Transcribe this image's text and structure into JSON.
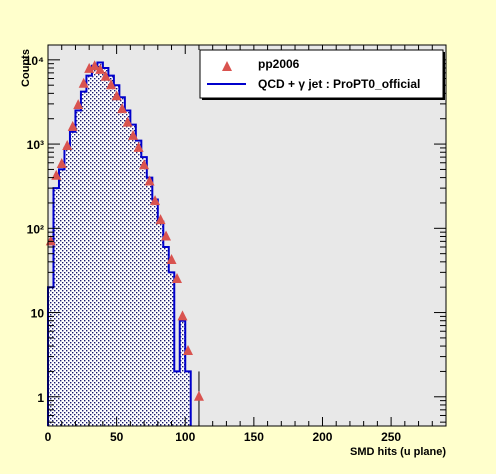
{
  "colors": {
    "background": "#ffffcc",
    "frame": "#e8e8e8",
    "mc_line": "#0000cc",
    "data_marker": "#d9534f"
  },
  "chart_data": {
    "type": "histogram",
    "xlabel": "SMD hits (u plane)",
    "ylabel": "Counts",
    "xlim": [
      0,
      290
    ],
    "ylim": [
      0.45,
      15000
    ],
    "y_scale": "log",
    "grid": false,
    "legend_position": "top-right",
    "x_ticks": [
      0,
      50,
      100,
      150,
      200,
      250
    ],
    "y_ticks": [
      {
        "value": 1,
        "label": "1"
      },
      {
        "value": 10,
        "label": "10"
      },
      {
        "value": 100,
        "label": "10²"
      },
      {
        "value": 1000,
        "label": "10³"
      },
      {
        "value": 10000,
        "label": "10⁴"
      }
    ],
    "legend": [
      {
        "label": "pp2006",
        "marker": "triangle"
      },
      {
        "label": "QCD + γ jet : ProPT0_official",
        "marker": "line"
      }
    ],
    "series": [
      {
        "name": "QCD + γ jet : ProPT0_official",
        "style": "hatched-histogram",
        "bin_edges": [
          0,
          4,
          8,
          12,
          16,
          20,
          24,
          28,
          32,
          36,
          40,
          44,
          48,
          52,
          56,
          60,
          64,
          68,
          72,
          76,
          80,
          84,
          88,
          92,
          96,
          100,
          104
        ],
        "values": [
          20,
          300,
          500,
          900,
          1400,
          2500,
          4200,
          6500,
          8500,
          9300,
          8000,
          6500,
          5000,
          3600,
          2500,
          1700,
          1100,
          700,
          400,
          220,
          120,
          60,
          30,
          2,
          8,
          2
        ]
      },
      {
        "name": "pp2006",
        "style": "triangle-markers",
        "points": [
          {
            "x": 2,
            "y": 70
          },
          {
            "x": 6,
            "y": 420
          },
          {
            "x": 10,
            "y": 580
          },
          {
            "x": 14,
            "y": 950
          },
          {
            "x": 18,
            "y": 1600
          },
          {
            "x": 22,
            "y": 2900
          },
          {
            "x": 26,
            "y": 5200
          },
          {
            "x": 30,
            "y": 7800
          },
          {
            "x": 34,
            "y": 8400
          },
          {
            "x": 38,
            "y": 7600
          },
          {
            "x": 42,
            "y": 6300
          },
          {
            "x": 46,
            "y": 5000
          },
          {
            "x": 50,
            "y": 3700
          },
          {
            "x": 54,
            "y": 2600
          },
          {
            "x": 58,
            "y": 1800
          },
          {
            "x": 62,
            "y": 1250
          },
          {
            "x": 66,
            "y": 900
          },
          {
            "x": 70,
            "y": 560
          },
          {
            "x": 74,
            "y": 360
          },
          {
            "x": 78,
            "y": 210
          },
          {
            "x": 82,
            "y": 125
          },
          {
            "x": 86,
            "y": 80
          },
          {
            "x": 90,
            "y": 42
          },
          {
            "x": 94,
            "y": 25
          },
          {
            "x": 98,
            "y": 9
          },
          {
            "x": 102,
            "y": 3.5
          },
          {
            "x": 110,
            "y": 1,
            "err_lo": 0.45,
            "err_hi": 2
          }
        ]
      }
    ]
  }
}
